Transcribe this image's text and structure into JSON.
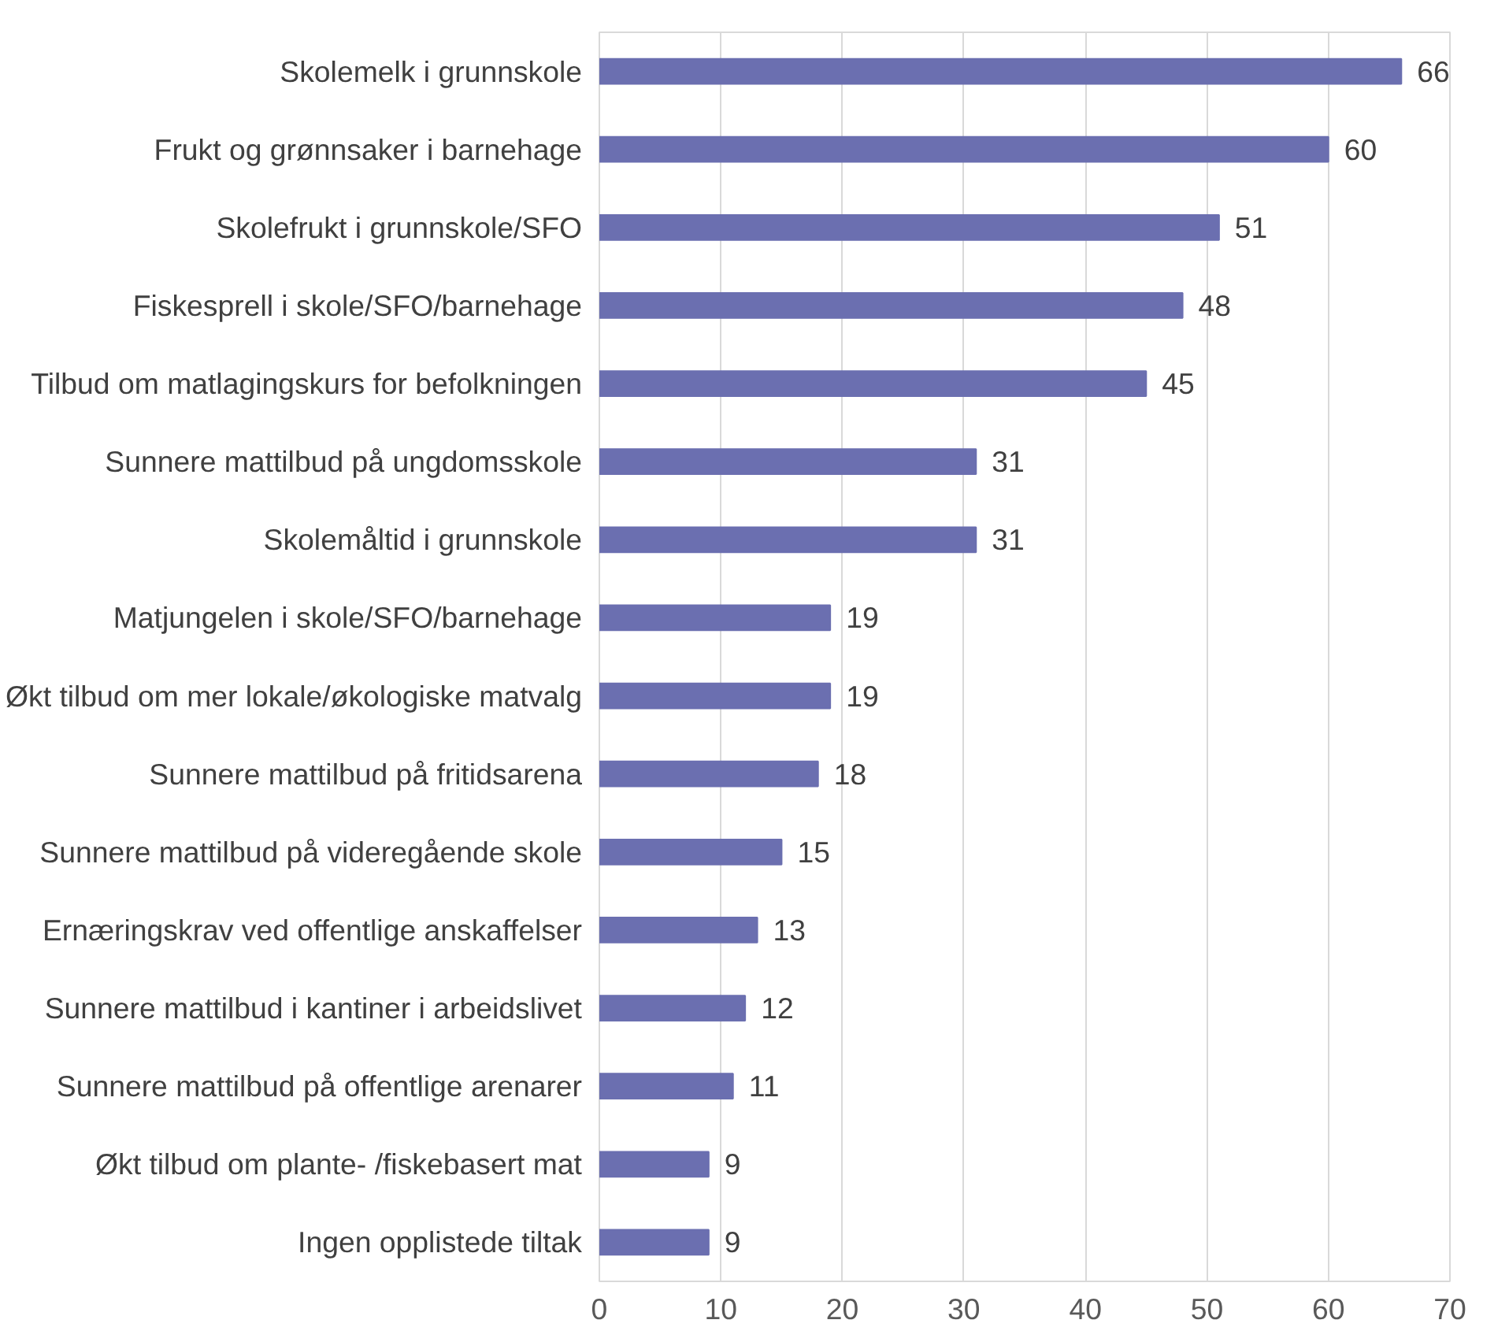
{
  "chart_data": {
    "type": "bar",
    "orientation": "horizontal",
    "categories": [
      "Skolemelk i grunnskole",
      "Frukt og grønnsaker i barnehage",
      "Skolefrukt i grunnskole/SFO",
      "Fiskesprell i skole/SFO/barnehage",
      "Tilbud om matlagingskurs for befolkningen",
      "Sunnere mattilbud på ungdomsskole",
      "Skolemåltid i grunnskole",
      "Matjungelen i skole/SFO/barnehage",
      "Økt tilbud om mer lokale/økologiske matvalg",
      "Sunnere mattilbud på fritidsarena",
      "Sunnere mattilbud på videregående skole",
      "Ernæringskrav ved offentlige anskaffelser",
      "Sunnere mattilbud i kantiner i arbeidslivet",
      "Sunnere mattilbud på offentlige arenarer",
      "Økt tilbud om plante- /fiskebasert mat",
      "Ingen opplistede tiltak"
    ],
    "values": [
      66,
      60,
      51,
      48,
      45,
      31,
      31,
      19,
      19,
      18,
      15,
      13,
      12,
      11,
      9,
      9
    ],
    "color": "#6b6fb0",
    "xlim": [
      0,
      70
    ],
    "xticks": [
      0,
      10,
      20,
      30,
      40,
      50,
      60,
      70
    ],
    "grid": "x",
    "data_labels": true
  }
}
